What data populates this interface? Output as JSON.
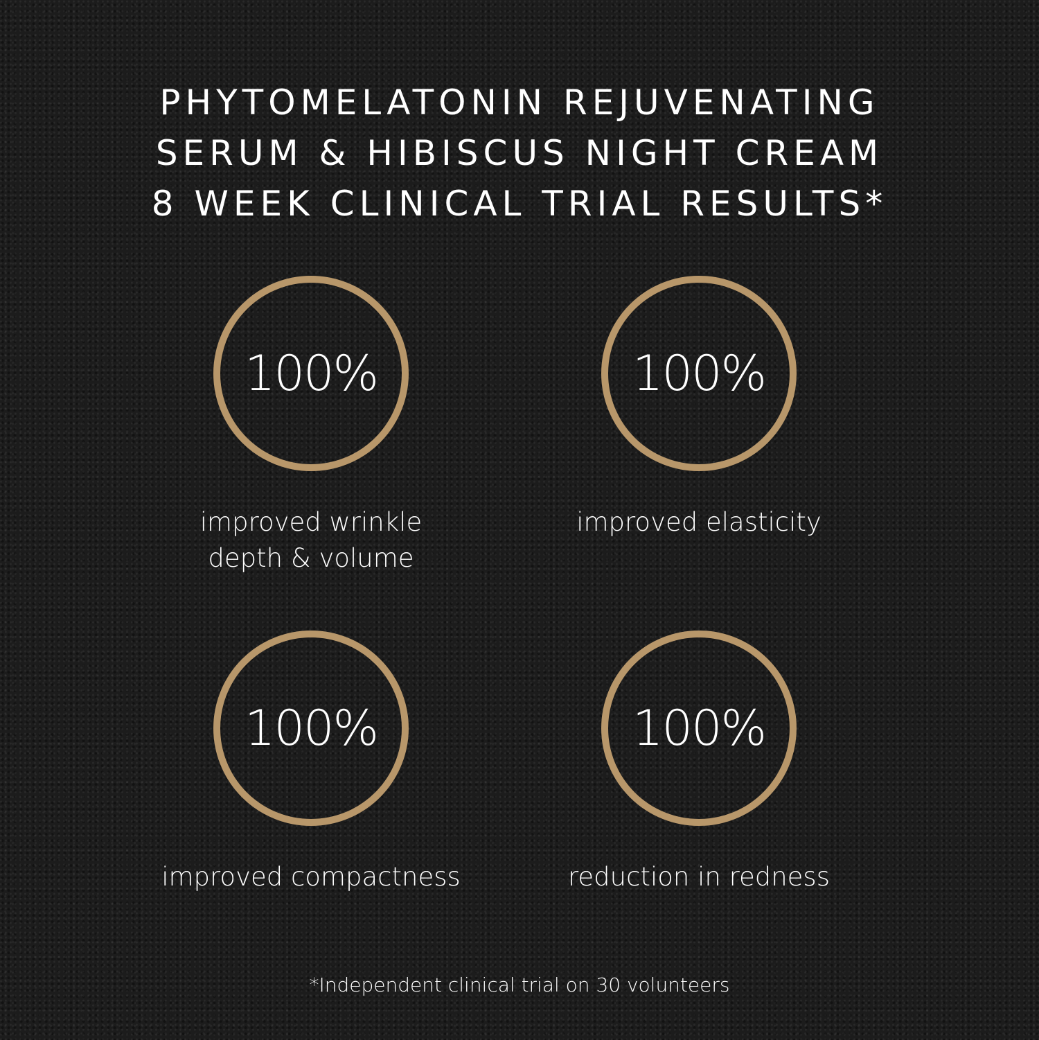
{
  "title_lines": [
    "PHYTOMELATONIN REJUVENATING",
    "SERUM & HIBISCUS NIGHT CREAM",
    "8 WEEK CLINICAL TRIAL RESULTS*"
  ],
  "stats": [
    {
      "value": "100%",
      "label_lines": [
        "improved wrinkle",
        "depth & volume"
      ]
    },
    {
      "value": "100%",
      "label_lines": [
        "improved elasticity"
      ]
    },
    {
      "value": "100%",
      "label_lines": [
        "improved compactness"
      ]
    },
    {
      "value": "100%",
      "label_lines": [
        "reduction in redness"
      ]
    }
  ],
  "footnote": "*Independent clinical trial on 30 volunteers",
  "colors": {
    "accent": "#b8976a",
    "background": "#1c1c1c",
    "text": "#ffffff"
  }
}
